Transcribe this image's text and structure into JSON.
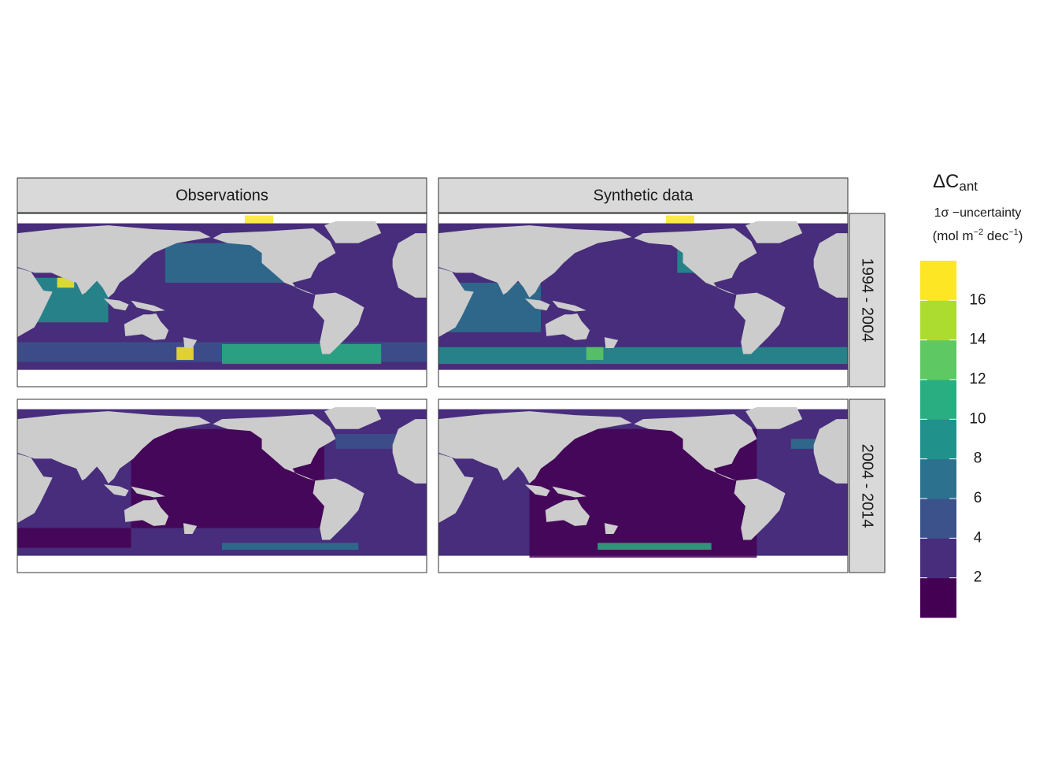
{
  "facets": {
    "columns": [
      "Observations",
      "Synthetic data"
    ],
    "rows": [
      "1994 - 2004",
      "2004 - 2014"
    ]
  },
  "legend": {
    "title": "ΔC",
    "title_sub": "ant",
    "subtitle": "1σ −uncertainty",
    "units": {
      "pre": "(mol m",
      "exp1": "−2",
      "mid": " dec",
      "exp2": "−1",
      "post": ")"
    },
    "colorbar": {
      "limits": [
        0,
        18
      ],
      "ticks": [
        2,
        4,
        6,
        8,
        10,
        12,
        14,
        16
      ],
      "colors": [
        "#440154",
        "#472d7b",
        "#3b528b",
        "#2c728e",
        "#21918c",
        "#28ae80",
        "#5ec962",
        "#addc30",
        "#fde725"
      ]
    }
  }
}
